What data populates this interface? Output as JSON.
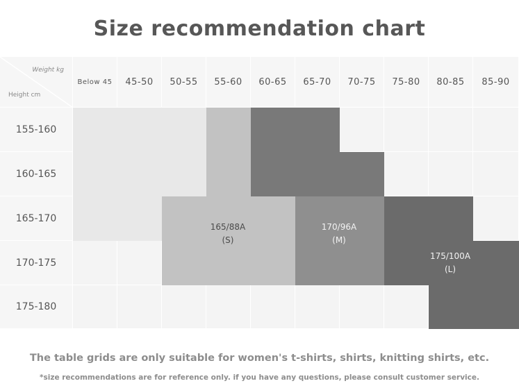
{
  "title": "Size recommendation chart",
  "corner": {
    "weight_label": "Weight kg",
    "height_label": "Height cm"
  },
  "weight_columns": [
    "Below 45",
    "45-50",
    "50-55",
    "55-60",
    "60-65",
    "65-70",
    "70-75",
    "75-80",
    "80-85",
    "85-90"
  ],
  "height_rows": [
    "155-160",
    "160-165",
    "165-170",
    "170-175",
    "175-180"
  ],
  "sizes": {
    "s": {
      "code": "165/88A",
      "letter": "(S)",
      "color": "#c2c2c2"
    },
    "m": {
      "code": "170/96A",
      "letter": "(M)",
      "color": "#8f8f8f"
    },
    "l": {
      "code": "175/100A",
      "letter": "(L)",
      "color": "#6b6b6b"
    },
    "faint_color": "#e8e8e8",
    "m_extra_color": "#797979"
  },
  "notes": {
    "suitability": "The table grids are only suitable for women's t-shirts, shirts, knitting shirts, etc.",
    "disclaimer": "*size recommendations are for reference only. if you have any questions, please consult customer service."
  }
}
